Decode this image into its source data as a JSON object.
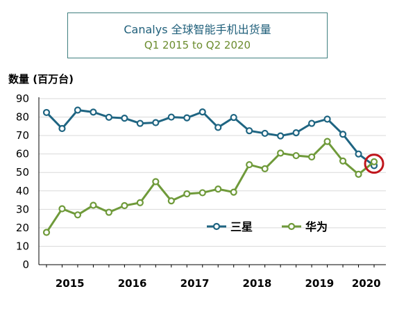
{
  "chart_data": {
    "type": "line",
    "title_brand": "Canalys",
    "title": "全球智能手机出货量",
    "subtitle": "Q1 2015 to Q2 2020",
    "ylabel": "数量 (百万台)",
    "xlabel": "",
    "ylim": [
      0,
      90
    ],
    "yticks": [
      0,
      10,
      20,
      30,
      40,
      50,
      60,
      70,
      80,
      90
    ],
    "categories": [
      "Q1 2015",
      "Q2 2015",
      "Q3 2015",
      "Q4 2015",
      "Q1 2016",
      "Q2 2016",
      "Q3 2016",
      "Q4 2016",
      "Q1 2017",
      "Q2 2017",
      "Q3 2017",
      "Q4 2017",
      "Q1 2018",
      "Q2 2018",
      "Q3 2018",
      "Q4 2018",
      "Q1 2019",
      "Q2 2019",
      "Q3 2019",
      "Q4 2019",
      "Q1 2020",
      "Q2 2020"
    ],
    "year_labels": [
      {
        "label": "2015",
        "index": 1.5
      },
      {
        "label": "2016",
        "index": 5.5
      },
      {
        "label": "2017",
        "index": 9.5
      },
      {
        "label": "2018",
        "index": 13.5
      },
      {
        "label": "2019",
        "index": 17.5
      },
      {
        "label": "2020",
        "index": 20.5
      }
    ],
    "series": [
      {
        "name": "三星",
        "color": "#1f6582",
        "values": [
          82.5,
          73.8,
          83.8,
          82.7,
          79.9,
          79.4,
          76.6,
          77.0,
          80.0,
          79.6,
          82.8,
          74.4,
          79.8,
          72.6,
          71.2,
          69.8,
          71.5,
          76.6,
          78.9,
          70.7,
          60.0,
          53.7
        ]
      },
      {
        "name": "华为",
        "color": "#6f9a3a",
        "values": [
          17.5,
          30.3,
          27.0,
          32.2,
          28.4,
          32.0,
          33.6,
          45.0,
          34.6,
          38.4,
          39.0,
          41.0,
          39.3,
          54.2,
          52.0,
          60.5,
          59.1,
          58.4,
          66.8,
          56.2,
          49.0,
          55.8
        ]
      }
    ],
    "grid": true,
    "legend_position": "inside-lower-right",
    "highlight": {
      "index": 21,
      "color": "#c0161c"
    }
  }
}
